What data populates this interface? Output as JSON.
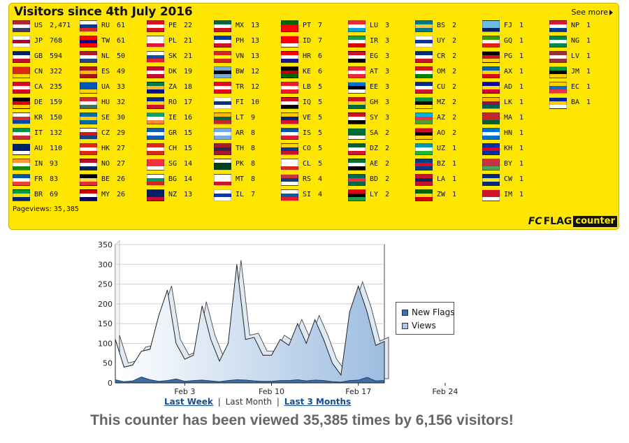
{
  "panel": {
    "title": "Visitors since 4th July 2016",
    "see_more": "See more",
    "pageviews_label": "Pageviews:",
    "pageviews_value": "35,385",
    "logo_mark": "FC",
    "logo_flag": "FLAG",
    "logo_counter": "counter"
  },
  "flags": [
    [
      [
        "US",
        "2,471"
      ],
      [
        "JP",
        "768"
      ],
      [
        "GB",
        "594"
      ],
      [
        "CN",
        "322"
      ],
      [
        "CA",
        "235"
      ],
      [
        "DE",
        "159"
      ],
      [
        "KR",
        "150"
      ],
      [
        "IT",
        "132"
      ],
      [
        "AU",
        "110"
      ],
      [
        "IN",
        "93"
      ],
      [
        "FR",
        "83"
      ],
      [
        "BR",
        "69"
      ]
    ],
    [
      [
        "RU",
        "61"
      ],
      [
        "TW",
        "61"
      ],
      [
        "NL",
        "50"
      ],
      [
        "ES",
        "49"
      ],
      [
        "UA",
        "33"
      ],
      [
        "HU",
        "32"
      ],
      [
        "SE",
        "30"
      ],
      [
        "CZ",
        "29"
      ],
      [
        "HK",
        "27"
      ],
      [
        "NO",
        "27"
      ],
      [
        "BE",
        "26"
      ],
      [
        "MY",
        "26"
      ]
    ],
    [
      [
        "PE",
        "22"
      ],
      [
        "PL",
        "21"
      ],
      [
        "SK",
        "21"
      ],
      [
        "DK",
        "19"
      ],
      [
        "ZA",
        "18"
      ],
      [
        "RO",
        "17"
      ],
      [
        "IE",
        "16"
      ],
      [
        "GR",
        "15"
      ],
      [
        "CH",
        "15"
      ],
      [
        "SG",
        "14"
      ],
      [
        "BG",
        "14"
      ],
      [
        "NZ",
        "13"
      ]
    ],
    [
      [
        "MX",
        "13"
      ],
      [
        "PH",
        "13"
      ],
      [
        "VN",
        "13"
      ],
      [
        "BW",
        "12"
      ],
      [
        "TR",
        "12"
      ],
      [
        "FI",
        "10"
      ],
      [
        "LT",
        "9"
      ],
      [
        "AR",
        "8"
      ],
      [
        "TH",
        "8"
      ],
      [
        "PK",
        "8"
      ],
      [
        "MT",
        "8"
      ],
      [
        "IL",
        "7"
      ]
    ],
    [
      [
        "PT",
        "7"
      ],
      [
        "ID",
        "7"
      ],
      [
        "HR",
        "6"
      ],
      [
        "KE",
        "6"
      ],
      [
        "LB",
        "5"
      ],
      [
        "IQ",
        "5"
      ],
      [
        "VE",
        "5"
      ],
      [
        "IS",
        "5"
      ],
      [
        "CO",
        "5"
      ],
      [
        "CL",
        "5"
      ],
      [
        "RS",
        "4"
      ],
      [
        "SI",
        "4"
      ]
    ],
    [
      [
        "LU",
        "3"
      ],
      [
        "IR",
        "3"
      ],
      [
        "EG",
        "3"
      ],
      [
        "AT",
        "3"
      ],
      [
        "EE",
        "3"
      ],
      [
        "GH",
        "3"
      ],
      [
        "SY",
        "3"
      ],
      [
        "SA",
        "2"
      ],
      [
        "DZ",
        "2"
      ],
      [
        "AE",
        "2"
      ],
      [
        "BD",
        "2"
      ],
      [
        "LY",
        "2"
      ]
    ],
    [
      [
        "BS",
        "2"
      ],
      [
        "UY",
        "2"
      ],
      [
        "CR",
        "2"
      ],
      [
        "OM",
        "2"
      ],
      [
        "CU",
        "2"
      ],
      [
        "MZ",
        "2"
      ],
      [
        "AZ",
        "2"
      ],
      [
        "AO",
        "2"
      ],
      [
        "UZ",
        "1"
      ],
      [
        "BZ",
        "1"
      ],
      [
        "LA",
        "1"
      ],
      [
        "ZW",
        "1"
      ]
    ],
    [
      [
        "FJ",
        "1"
      ],
      [
        "GQ",
        "1"
      ],
      [
        "PG",
        "1"
      ],
      [
        "AX",
        "1"
      ],
      [
        "AD",
        "1"
      ],
      [
        "LK",
        "1"
      ],
      [
        "MA",
        "1"
      ],
      [
        "HN",
        "1"
      ],
      [
        "KH",
        "1"
      ],
      [
        "BY",
        "1"
      ],
      [
        "CW",
        "1"
      ],
      [
        "IM",
        "1"
      ]
    ],
    [
      [
        "NP",
        "1"
      ],
      [
        "NG",
        "1"
      ],
      [
        "LV",
        "1"
      ],
      [
        "JM",
        "1"
      ],
      [
        "EC",
        "1"
      ],
      [
        "BA",
        "1"
      ]
    ]
  ],
  "flag_colors": {
    "US": [
      "#b22234",
      "#ffffff",
      "#3c3b6e"
    ],
    "JP": [
      "#ffffff",
      "#bc002d",
      "#ffffff"
    ],
    "GB": [
      "#012169",
      "#ffffff",
      "#c8102e"
    ],
    "CN": [
      "#de2910",
      "#de2910",
      "#ffde00"
    ],
    "CA": [
      "#d80621",
      "#ffffff",
      "#d80621"
    ],
    "DE": [
      "#000000",
      "#dd0000",
      "#ffce00"
    ],
    "KR": [
      "#ffffff",
      "#cd2e3a",
      "#0047a0"
    ],
    "IT": [
      "#009246",
      "#ffffff",
      "#ce2b37"
    ],
    "AU": [
      "#012169",
      "#012169",
      "#ffffff"
    ],
    "IN": [
      "#ff9933",
      "#ffffff",
      "#138808"
    ],
    "FR": [
      "#0055a4",
      "#ffffff",
      "#ef4135"
    ],
    "BR": [
      "#009c3b",
      "#ffdf00",
      "#002776"
    ],
    "RU": [
      "#ffffff",
      "#0039a6",
      "#d52b1e"
    ],
    "TW": [
      "#fe0000",
      "#000095",
      "#fe0000"
    ],
    "NL": [
      "#ae1c28",
      "#ffffff",
      "#21468b"
    ],
    "ES": [
      "#aa151b",
      "#f1bf00",
      "#aa151b"
    ],
    "UA": [
      "#0057b7",
      "#0057b7",
      "#ffd700"
    ],
    "HU": [
      "#ce2939",
      "#ffffff",
      "#477050"
    ],
    "SE": [
      "#006aa7",
      "#fecc00",
      "#006aa7"
    ],
    "CZ": [
      "#ffffff",
      "#d7141a",
      "#11457e"
    ],
    "HK": [
      "#de2910",
      "#ffffff",
      "#de2910"
    ],
    "NO": [
      "#ba0c2f",
      "#ffffff",
      "#00205b"
    ],
    "BE": [
      "#000000",
      "#fae042",
      "#ed2939"
    ],
    "MY": [
      "#cc0001",
      "#ffffff",
      "#010066"
    ],
    "PE": [
      "#d91023",
      "#ffffff",
      "#d91023"
    ],
    "PL": [
      "#ffffff",
      "#ffffff",
      "#dc143c"
    ],
    "SK": [
      "#ffffff",
      "#0b4ea2",
      "#ee1c25"
    ],
    "DK": [
      "#c60c30",
      "#ffffff",
      "#c60c30"
    ],
    "ZA": [
      "#007749",
      "#ffb81c",
      "#001489"
    ],
    "RO": [
      "#002b7f",
      "#fcd116",
      "#ce1126"
    ],
    "IE": [
      "#169b62",
      "#ffffff",
      "#ff883e"
    ],
    "GR": [
      "#0d5eaf",
      "#ffffff",
      "#0d5eaf"
    ],
    "CH": [
      "#d52b1e",
      "#ffffff",
      "#d52b1e"
    ],
    "SG": [
      "#ef3340",
      "#ef3340",
      "#ffffff"
    ],
    "BG": [
      "#ffffff",
      "#00966e",
      "#d62612"
    ],
    "NZ": [
      "#012169",
      "#012169",
      "#c8102e"
    ],
    "MX": [
      "#006847",
      "#ffffff",
      "#ce1126"
    ],
    "PH": [
      "#0038a8",
      "#ffffff",
      "#ce1126"
    ],
    "VN": [
      "#da251d",
      "#ffff00",
      "#da251d"
    ],
    "BW": [
      "#75aadb",
      "#000000",
      "#75aadb"
    ],
    "TR": [
      "#e30a17",
      "#ffffff",
      "#e30a17"
    ],
    "FI": [
      "#ffffff",
      "#003580",
      "#ffffff"
    ],
    "LT": [
      "#fdb913",
      "#006a44",
      "#c1272d"
    ],
    "AR": [
      "#74acdf",
      "#ffffff",
      "#74acdf"
    ],
    "TH": [
      "#a51931",
      "#2d2a4a",
      "#a51931"
    ],
    "PK": [
      "#ffffff",
      "#01411c",
      "#01411c"
    ],
    "MT": [
      "#ffffff",
      "#ffffff",
      "#cf142b"
    ],
    "IL": [
      "#ffffff",
      "#0038b8",
      "#ffffff"
    ],
    "PT": [
      "#006600",
      "#ff0000",
      "#ff0000"
    ],
    "ID": [
      "#ff0000",
      "#ff0000",
      "#ffffff"
    ],
    "HR": [
      "#ff0000",
      "#ffffff",
      "#171796"
    ],
    "KE": [
      "#000000",
      "#bb0000",
      "#006600"
    ],
    "LB": [
      "#ed1c24",
      "#ffffff",
      "#ed1c24"
    ],
    "IQ": [
      "#ce1126",
      "#ffffff",
      "#000000"
    ],
    "VE": [
      "#ffcc00",
      "#00247d",
      "#cf142b"
    ],
    "IS": [
      "#02529c",
      "#ffffff",
      "#dc1e35"
    ],
    "CO": [
      "#fcd116",
      "#003893",
      "#ce1126"
    ],
    "CL": [
      "#ffffff",
      "#ffffff",
      "#d52b1e"
    ],
    "RS": [
      "#c6363c",
      "#0c4076",
      "#ffffff"
    ],
    "SI": [
      "#ffffff",
      "#005da4",
      "#ed1c24"
    ],
    "LU": [
      "#ed2939",
      "#ffffff",
      "#00a1de"
    ],
    "IR": [
      "#239f40",
      "#ffffff",
      "#da0000"
    ],
    "EG": [
      "#ce1126",
      "#ffffff",
      "#000000"
    ],
    "AT": [
      "#ed2939",
      "#ffffff",
      "#ed2939"
    ],
    "EE": [
      "#0072ce",
      "#000000",
      "#ffffff"
    ],
    "GH": [
      "#ce1126",
      "#fcd116",
      "#006b3f"
    ],
    "SY": [
      "#ce1126",
      "#ffffff",
      "#000000"
    ],
    "SA": [
      "#006c35",
      "#006c35",
      "#ffffff"
    ],
    "DZ": [
      "#006233",
      "#ffffff",
      "#d21034"
    ],
    "AE": [
      "#00732f",
      "#ffffff",
      "#000000"
    ],
    "BD": [
      "#006a4e",
      "#f42a41",
      "#006a4e"
    ],
    "LY": [
      "#e70013",
      "#000000",
      "#239e46"
    ],
    "BS": [
      "#00778b",
      "#ffc72c",
      "#00778b"
    ],
    "UY": [
      "#ffffff",
      "#0038a8",
      "#ffffff"
    ],
    "CR": [
      "#002b7f",
      "#ffffff",
      "#ce1126"
    ],
    "OM": [
      "#db161b",
      "#ffffff",
      "#008000"
    ],
    "CU": [
      "#002a8f",
      "#ffffff",
      "#cf142b"
    ],
    "MZ": [
      "#009a44",
      "#000000",
      "#fce100"
    ],
    "AZ": [
      "#00b5e2",
      "#ef3340",
      "#509e2f"
    ],
    "AO": [
      "#cc092f",
      "#000000",
      "#ffcb00"
    ],
    "UZ": [
      "#0099b5",
      "#ffffff",
      "#1eb53a"
    ],
    "BZ": [
      "#003f87",
      "#ce1126",
      "#003f87"
    ],
    "LA": [
      "#ce1126",
      "#002868",
      "#ce1126"
    ],
    "ZW": [
      "#006400",
      "#ffd200",
      "#d40000"
    ],
    "FJ": [
      "#68bfe5",
      "#68bfe5",
      "#012169"
    ],
    "GQ": [
      "#3e9a00",
      "#ffffff",
      "#e32118"
    ],
    "PG": [
      "#000000",
      "#ce1126",
      "#fcd116"
    ],
    "AX": [
      "#0064ad",
      "#ffd300",
      "#da0e15"
    ],
    "AD": [
      "#10069f",
      "#fedd00",
      "#d50032"
    ],
    "LK": [
      "#ffb700",
      "#8d153a",
      "#005f56"
    ],
    "MA": [
      "#c1272d",
      "#c1272d",
      "#006233"
    ],
    "HN": [
      "#0073cf",
      "#ffffff",
      "#0073cf"
    ],
    "KH": [
      "#032ea1",
      "#e00025",
      "#032ea1"
    ],
    "BY": [
      "#c8313e",
      "#c8313e",
      "#4aa657"
    ],
    "CW": [
      "#002b7f",
      "#f9e814",
      "#002b7f"
    ],
    "IM": [
      "#cf142b",
      "#cf142b",
      "#ffffff"
    ],
    "NP": [
      "#dc143c",
      "#ffffff",
      "#003893"
    ],
    "NG": [
      "#008751",
      "#ffffff",
      "#008751"
    ],
    "LV": [
      "#9e3039",
      "#ffffff",
      "#9e3039"
    ],
    "JM": [
      "#009b3a",
      "#000000",
      "#fed100"
    ],
    "EC": [
      "#ffd100",
      "#0072ce",
      "#ef3340"
    ],
    "BA": [
      "#002395",
      "#fecb00",
      "#ffffff"
    ]
  },
  "chart_data": {
    "type": "area",
    "x_tick_labels": [
      "Feb 3",
      "Feb 10",
      "Feb 17",
      "Feb 24"
    ],
    "x_tick_index": [
      8,
      18,
      28,
      38
    ],
    "ylim": [
      0,
      350
    ],
    "y_ticks": [
      0,
      50,
      100,
      150,
      200,
      250,
      300,
      350
    ],
    "series": [
      {
        "name": "Views",
        "color": "#a8c8e8",
        "values": [
          110,
          40,
          45,
          80,
          85,
          170,
          235,
          100,
          60,
          70,
          195,
          110,
          55,
          100,
          300,
          110,
          115,
          70,
          70,
          110,
          95,
          150,
          100,
          160,
          110,
          50,
          20,
          180,
          245,
          180,
          95,
          105
        ]
      },
      {
        "name": "New Flags",
        "color": "#3e6ea8",
        "values": [
          8,
          3,
          5,
          15,
          8,
          4,
          6,
          10,
          4,
          6,
          7,
          5,
          3,
          6,
          8,
          7,
          5,
          4,
          4,
          6,
          6,
          8,
          5,
          7,
          6,
          3,
          2,
          6,
          7,
          14,
          5,
          6
        ]
      }
    ],
    "legend_position": "right"
  },
  "range_links": {
    "last_week": "Last Week",
    "last_month": "Last Month",
    "last_3_months": "Last 3 Months",
    "sep": "|"
  },
  "summary": "This counter has been viewed 35,385 times by 6,156 visitors!"
}
